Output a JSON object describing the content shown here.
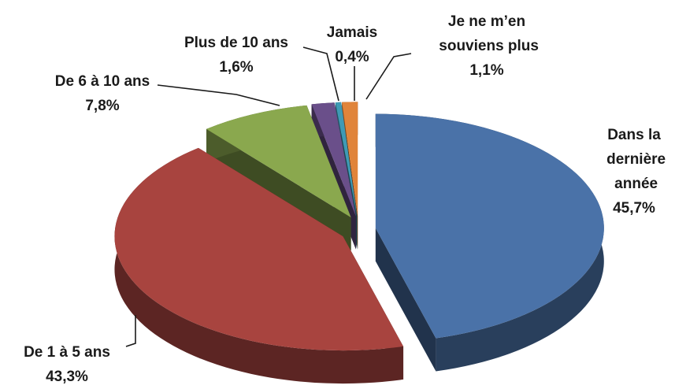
{
  "chart_data": {
    "type": "pie",
    "categories": [
      "Dans la dernière année",
      "De 1 à 5 ans",
      "De 6 à 10 ans",
      "Plus de 10 ans",
      "Jamais",
      "Je ne m’en souviens plus"
    ],
    "values": [
      45.7,
      43.3,
      7.8,
      1.6,
      0.4,
      1.1
    ],
    "value_labels": [
      "45,7%",
      "43,3%",
      "7,8%",
      "1,6%",
      "0,4%",
      "1,1%"
    ],
    "colors": [
      "#4a72a8",
      "#a8443f",
      "#8aa84e",
      "#6a4f8a",
      "#3f9ab5",
      "#e0843a"
    ]
  }
}
